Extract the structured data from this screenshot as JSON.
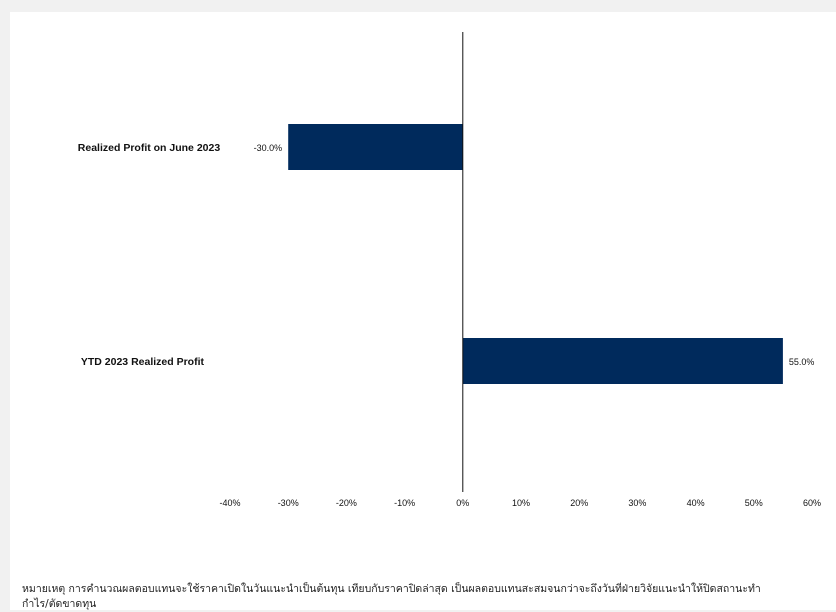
{
  "chart_data": {
    "type": "bar",
    "orientation": "horizontal",
    "categories": [
      "Realized Profit on  June 2023",
      "YTD 2023  Realized Profit"
    ],
    "values": [
      -30.0,
      55.0
    ],
    "value_labels": [
      "-30.0%",
      "55.0%"
    ],
    "xlim": [
      -40,
      60
    ],
    "xticks": [
      -40,
      -30,
      -20,
      -10,
      0,
      10,
      20,
      30,
      40,
      50,
      60
    ],
    "xtick_labels": [
      "-40%",
      "-30%",
      "-20%",
      "-10%",
      "0%",
      "10%",
      "20%",
      "30%",
      "40%",
      "50%",
      "60%"
    ],
    "bar_color": "#002a5c",
    "grid": false,
    "title": "",
    "xlabel": "",
    "ylabel": ""
  },
  "footnote": {
    "line1": "หมายเหตุ การคำนวณผลตอบแทนจะใช้ราคาเปิดในวันแนะนำเป็นต้นทุน  เทียบกับราคาปิดล่าสุด  เป็นผลตอบแทนสะสมจนกว่าจะถึงวันที่ฝ่ายวิจัยแนะนำให้ปิดสถานะทำ",
    "line2": "กำไร/ตัดขาดทุน"
  }
}
